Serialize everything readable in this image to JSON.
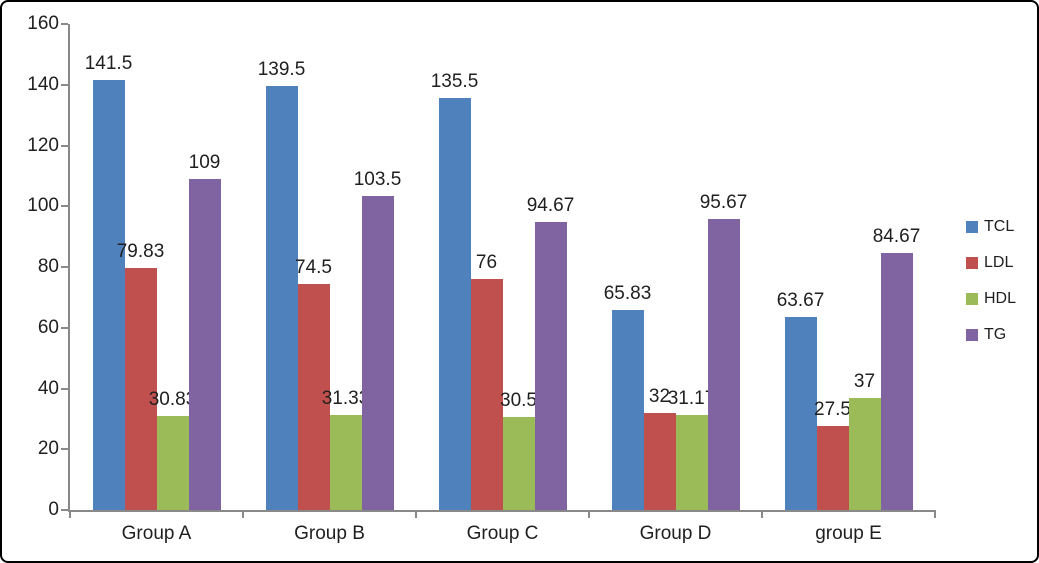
{
  "chart_data": {
    "type": "bar",
    "title": "",
    "categories": [
      "Group A",
      "Group B",
      "Group C",
      "Group D",
      "group E"
    ],
    "series": [
      {
        "name": "TCL",
        "color": "#4F81BD",
        "values": [
          141.5,
          139.5,
          135.5,
          65.83,
          63.67
        ]
      },
      {
        "name": "LDL",
        "color": "#C0504D",
        "values": [
          79.83,
          74.5,
          76,
          32,
          27.5
        ]
      },
      {
        "name": "HDL",
        "color": "#9BBB59",
        "values": [
          30.83,
          31.33,
          30.5,
          31.17,
          37
        ]
      },
      {
        "name": "TG",
        "color": "#8064A2",
        "values": [
          109,
          103.5,
          94.67,
          95.67,
          84.67
        ]
      }
    ],
    "ylim": [
      0,
      160
    ],
    "yticks": [
      0,
      20,
      40,
      60,
      80,
      100,
      120,
      140,
      160
    ],
    "grid": false,
    "data_labels": true,
    "legend_position": "right",
    "axis_color": "#898989",
    "text_color": "#1f1f1f",
    "background_color": "#ffffff"
  }
}
